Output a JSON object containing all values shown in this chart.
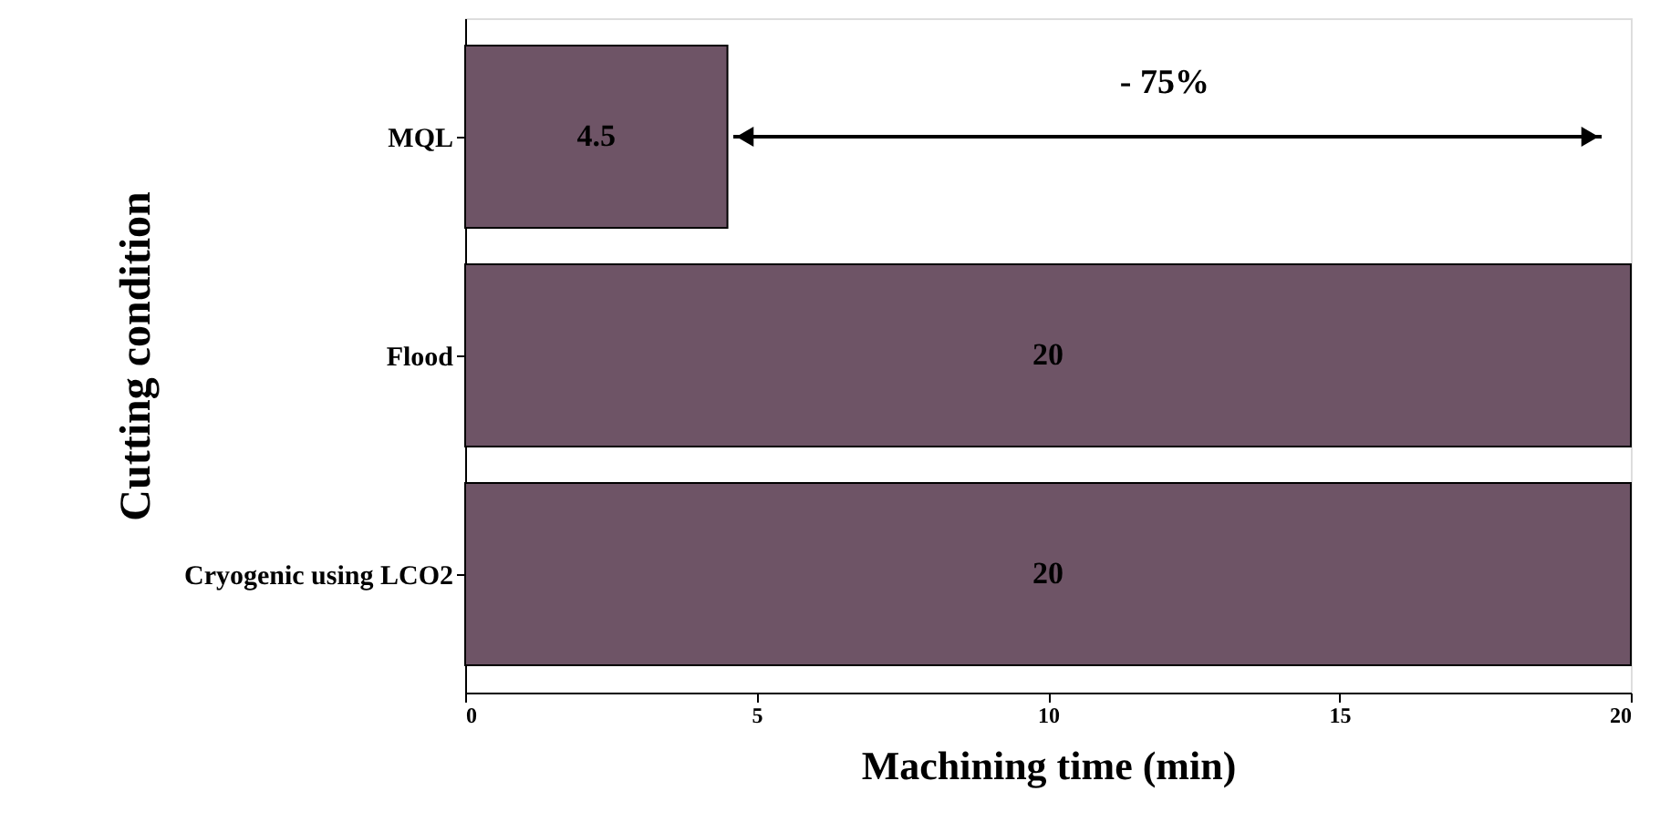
{
  "chart_data": {
    "type": "bar",
    "orientation": "horizontal",
    "xlabel": "Machining time (min)",
    "ylabel": "Cutting condition",
    "categories": [
      "MQL",
      "Flood",
      "Cryogenic using LCO2"
    ],
    "values": [
      4.5,
      20,
      20
    ],
    "color": "#6e5466",
    "xlim": [
      0,
      20
    ],
    "xticks": [
      0,
      5,
      10,
      15,
      20
    ],
    "data_labels": true,
    "grid": false,
    "annotations": [
      "- 75%"
    ]
  }
}
